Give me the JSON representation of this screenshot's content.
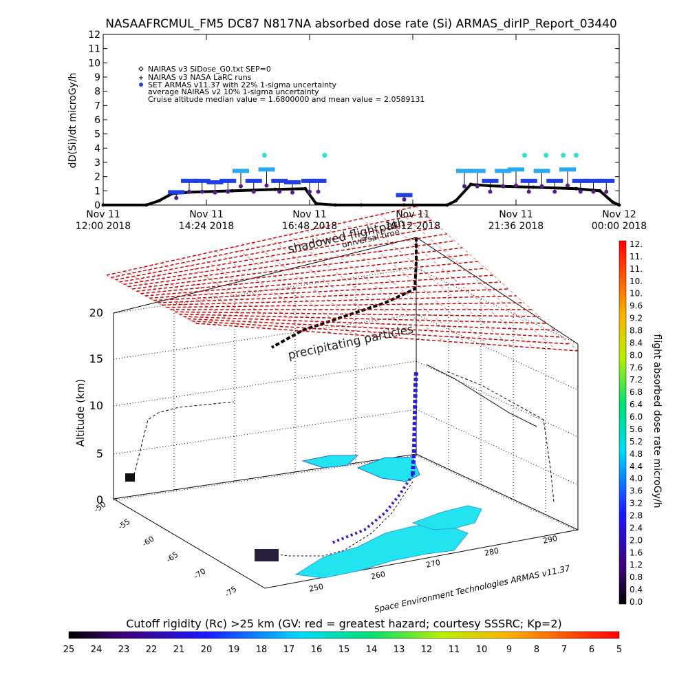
{
  "title": "NASAAFRCMUL_FM5 DC87 N817NA absorbed dose rate (Si) ARMAS_dirIP_Report_03440",
  "chart_data": [
    {
      "type": "line",
      "ylabel": "dD(Si)/dt microGy/h",
      "ylim": [
        0,
        12
      ],
      "y_ticks": [
        "0",
        "1",
        "2",
        "3",
        "4",
        "5",
        "6",
        "7",
        "8",
        "9",
        "10",
        "11",
        "12"
      ],
      "x_ticks": [
        {
          "day": "Nov 11",
          "time": "12:00 2018"
        },
        {
          "day": "Nov 11",
          "time": "14:24 2018"
        },
        {
          "day": "Nov 11",
          "time": "16:48 2018"
        },
        {
          "day": "Nov 11",
          "time": "19:12 2018"
        },
        {
          "day": "Nov 11",
          "time": "21:36 2018"
        },
        {
          "day": "Nov 12",
          "time": "00:00 2018"
        }
      ],
      "legend": [
        {
          "symbol": "diamond",
          "text": "NAIRAS v3 SiDose_G0.txt SEP=0"
        },
        {
          "symbol": "plus",
          "text": "NAIRAS v3 NASA LaRC runs"
        },
        {
          "symbol": "dot",
          "color": "#1f3fe0",
          "text": "SET ARMAS v11.37 with 22% 1-sigma uncertainty"
        },
        {
          "symbol": "",
          "text": "average NAIRAS v2 10% 1-sigma uncertainty"
        },
        {
          "symbol": "",
          "text": "Cruise altitude median value = 1.6800000 and mean value = 2.0589131"
        }
      ],
      "series": [
        {
          "name": "NAIRAS v3 SiDose_G0.txt SEP=0",
          "x_hours": [
            12.0,
            13.0,
            13.3,
            13.6,
            14.0,
            15.0,
            16.0,
            16.7,
            16.95,
            17.4,
            18.0,
            19.0,
            20.0,
            20.2,
            20.55,
            21.0,
            22.0,
            23.0,
            23.55,
            23.85,
            24.0
          ],
          "values": [
            0.0,
            0.0,
            0.3,
            0.8,
            0.9,
            1.0,
            1.1,
            1.15,
            0.1,
            0.0,
            0.0,
            0.0,
            0.0,
            0.3,
            1.45,
            1.35,
            1.25,
            1.15,
            1.0,
            0.2,
            0.0
          ]
        },
        {
          "name": "SET ARMAS v11.37 with 22% 1-sigma uncertainty",
          "x_hours": [
            13.7,
            14.0,
            14.3,
            14.6,
            14.9,
            15.2,
            15.5,
            15.8,
            16.1,
            16.4,
            16.8,
            17.0,
            19.0,
            20.4,
            20.7,
            21.0,
            21.3,
            21.6,
            21.9,
            22.2,
            22.5,
            22.8,
            23.1,
            23.4,
            23.7
          ],
          "values": [
            0.9,
            1.7,
            1.7,
            1.6,
            1.7,
            2.4,
            1.7,
            2.5,
            1.7,
            1.6,
            1.7,
            1.7,
            0.7,
            2.4,
            2.4,
            1.7,
            2.4,
            2.5,
            1.7,
            2.4,
            1.7,
            2.5,
            1.7,
            1.7,
            1.7
          ]
        }
      ],
      "highlights": {
        "x_hours": [
          15.75,
          17.15,
          21.8,
          22.3,
          22.7,
          23.0
        ],
        "values": [
          3.5,
          3.5,
          3.5,
          3.5,
          3.5,
          3.5
        ]
      }
    },
    {
      "type": "3d-surface",
      "zlabel": "Altitude (km)",
      "z_ticks": [
        "0",
        "5",
        "10",
        "15",
        "20"
      ],
      "lat_ticks": [
        "-50",
        "-55",
        "-60",
        "-65",
        "-70",
        "-75"
      ],
      "lon_ticks": [
        "250",
        "260",
        "270",
        "280",
        "290"
      ],
      "annotations": [
        "shadowed flightpath",
        "universal time",
        "precipitating particles"
      ],
      "credit": "Space Environment Technologies ARMAS v11.37",
      "dose_colorbar": {
        "label": "flight absorbed dose rate microGy/h",
        "ticks": [
          "12.",
          "11.",
          "11.",
          "10.",
          "10.",
          "9.6",
          "9.2",
          "8.8",
          "8.4",
          "8.0",
          "7.6",
          "7.2",
          "6.8",
          "6.4",
          "6.0",
          "5.6",
          "5.2",
          "4.8",
          "4.4",
          "4.0",
          "3.6",
          "3.2",
          "2.8",
          "2.4",
          "2.0",
          "1.6",
          "1.2",
          "0.8",
          "0.4",
          "0.0"
        ]
      },
      "rigidity_colorbar": {
        "label": "Cutoff rigidity (Rc) >25 km (GV: red = greatest hazard; courtesy SSSRC; Kp=2)",
        "ticks": [
          "25",
          "24",
          "23",
          "22",
          "21",
          "20",
          "19",
          "18",
          "17",
          "16",
          "15",
          "14",
          "13",
          "12",
          "11",
          "10",
          "9",
          "8",
          "7",
          "6",
          "5"
        ]
      }
    }
  ]
}
